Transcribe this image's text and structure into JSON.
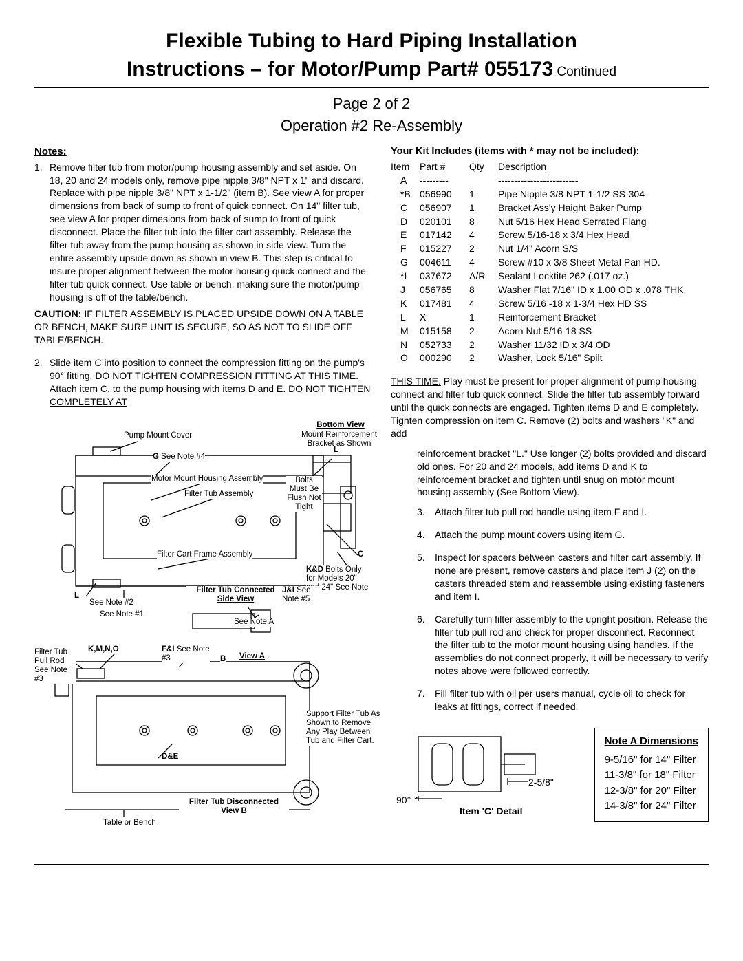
{
  "title_line1": "Flexible Tubing to Hard Piping Installation",
  "title_line2": "Instructions – for Motor/Pump Part# 055173",
  "continued": " Continued",
  "page_label": "Page 2 of 2",
  "operation": "Operation #2 Re-Assembly",
  "notes_heading": "Notes:",
  "note1_num": "1.",
  "note1_body": "Remove filter tub from motor/pump housing assembly and set aside. On 18, 20 and 24 models only, remove pipe nipple 3/8\" NPT x 1\" and discard. Replace with pipe nipple 3/8\" NPT x 1-1/2\" (item B). See view A for proper dimensions from back of sump to front of quick connect. On 14\" filter tub, see view A for proper dimesions from back of sump to front of quick disconnect. Place the filter tub into the filter cart assembly. Release the filter tub away from the pump housing as shown in side view. Turn the entire assembly upside down as shown in view B. This step is critical to insure proper alignment between the motor housing quick connect and the filter tub quick connect. Use table or bench, making sure the motor/pump housing is off of the table/bench.",
  "caution_label": "CAUTION:",
  "caution_body": " IF FILTER ASSEMBLY IS PLACED UPSIDE DOWN ON A TABLE OR BENCH, MAKE SURE UNIT IS SECURE, SO AS NOT TO SLIDE OFF TABLE/BENCH.",
  "note2_num": "2.",
  "note2_a": "Slide item C into position to connect the compression fitting on the pump's 90° fitting. ",
  "note2_u1": "DO NOT TIGHTEN COMPRESSION FITTING AT THIS TIME.",
  "note2_b": " Attach item C, to the pump housing with items D and E. ",
  "note2_u2": "DO NOT TIGHTEN COMPLETELY AT",
  "kit_heading": "Your Kit Includes (items with * may not be included):",
  "kit_headers": {
    "item": "Item",
    "part": "Part #",
    "qty": "Qty",
    "desc": "Description"
  },
  "kit_rows": [
    {
      "item": "A",
      "part": "---------",
      "qty": "",
      "desc": "-------------------------"
    },
    {
      "item": "*B",
      "part": "056990",
      "qty": "1",
      "desc": "Pipe Nipple 3/8 NPT 1-1/2 SS-304"
    },
    {
      "item": "C",
      "part": "056907",
      "qty": "1",
      "desc": "Bracket Ass'y Haight Baker Pump"
    },
    {
      "item": "D",
      "part": "020101",
      "qty": "8",
      "desc": "Nut 5/16 Hex Head Serrated Flang"
    },
    {
      "item": "E",
      "part": "017142",
      "qty": "4",
      "desc": "Screw 5/16-18 x 3/4 Hex Head"
    },
    {
      "item": "F",
      "part": "015227",
      "qty": "2",
      "desc": "Nut 1/4\" Acorn S/S"
    },
    {
      "item": "G",
      "part": "004611",
      "qty": "4",
      "desc": "Screw #10 x 3/8 Sheet Metal Pan HD."
    },
    {
      "item": "*I",
      "part": "037672",
      "qty": "A/R",
      "desc": "Sealant Locktite 262 (.017 oz.)"
    },
    {
      "item": "J",
      "part": "056765",
      "qty": "8",
      "desc": "Washer Flat 7/16\" ID x 1.00 OD x .078 THK."
    },
    {
      "item": "K",
      "part": "017481",
      "qty": "4",
      "desc": "Screw 5/16 -18 x 1-3/4 Hex HD SS"
    },
    {
      "item": "L",
      "part": "X",
      "qty": "1",
      "desc": "Reinforcement Bracket"
    },
    {
      "item": "M",
      "part": "015158",
      "qty": "2",
      "desc": "Acorn Nut 5/16-18 SS"
    },
    {
      "item": "N",
      "part": "052733",
      "qty": "2",
      "desc": "Washer 11/32 ID x 3/4 OD"
    },
    {
      "item": "O",
      "part": "000290",
      "qty": "2",
      "desc": "Washer, Lock 5/16\" Spilt"
    }
  ],
  "cont_u": "THIS TIME.",
  "cont_body": " Play must be present for proper alignment of pump housing connect and filter tub quick connect. Slide the filter tub assembly forward until the quick connects are engaged. Tighten items D and E completely. Tighten compression on item C. Remove (2) bolts and washers \"K\" and add",
  "cont_indent": "reinforcement bracket \"L.\" Use longer (2) bolts provided and discard old ones. For 20 and 24 models, add items D and K to reinforcement bracket and tighten until snug on motor mount housing assembly (See Bottom View).",
  "step3_num": "3.",
  "step3": "Attach filter tub pull rod handle using item F and I.",
  "step4_num": "4.",
  "step4": "Attach the pump mount covers using item G.",
  "step5_num": "5.",
  "step5": "Inspect for spacers between casters and filter cart assembly. If none are present, remove casters and place item J (2) on the casters threaded stem and reassemble using existing fasteners and item I.",
  "step6_num": "6.",
  "step6": "Carefully turn filter assembly to the upright position. Release the filter tub pull rod and check for proper disconnect. Reconnect the filter tub to the motor mount housing using handles. If the assemblies do not connect properly, it will be necessary to verify notes above were followed correctly.",
  "step7_num": "7.",
  "step7": "Fill filter tub with oil per users manual, cycle oil to check for leaks at fittings, correct if needed.",
  "dim_heading": "Note A Dimensions",
  "dim_rows": [
    "9-5/16\" for 14\" Filter",
    "11-3/8\" for 18\" Filter",
    "12-3/8\" for 20\" Filter",
    "14-3/8\" for 24\" Filter"
  ],
  "diag": {
    "bottom_view": "Bottom View",
    "mount_reinf": "Mount Reinforcement Bracket as Shown",
    "pump_mount_cover": "Pump Mount Cover",
    "g_note": " See Note #4",
    "motor_mount": "Motor Mount Housing Assembly",
    "filter_tub_asm": "Filter Tub Assembly",
    "bolts_flush": "Bolts Must Be Flush Not Tight",
    "filter_cart": "Filter Cart Frame Assembly",
    "l_note": "See Note #2",
    "see_note1": "See Note #1",
    "ftc_side": "Filter Tub Connected",
    "side_view": "Side View",
    "ji_note": " See Note #5",
    "kd_note": " Bolts Only for Models 20\" and 24\" See Note #2",
    "filter_pull": "Filter Tub Pull Rod See Note #3",
    "kmno": "K,M,N,O",
    "fi_note": " See Note #3",
    "see_note_a": "See Note A",
    "view_a": "View A",
    "de": "D&E",
    "ftd": "Filter Tub Disconnected",
    "view_b": "View B",
    "table_bench": "Table or Bench",
    "support_tub": "Support Filter Tub As Shown to Remove Any Play Between Tub and Filter Cart.",
    "ninety": "90°",
    "two58": "2-5/8\"",
    "item_c": "Item 'C' Detail",
    "C": "C",
    "L": "L",
    "B": "B",
    "G": "G",
    "JI": "J&I",
    "KD": "K&D",
    "FI": "F&I"
  }
}
